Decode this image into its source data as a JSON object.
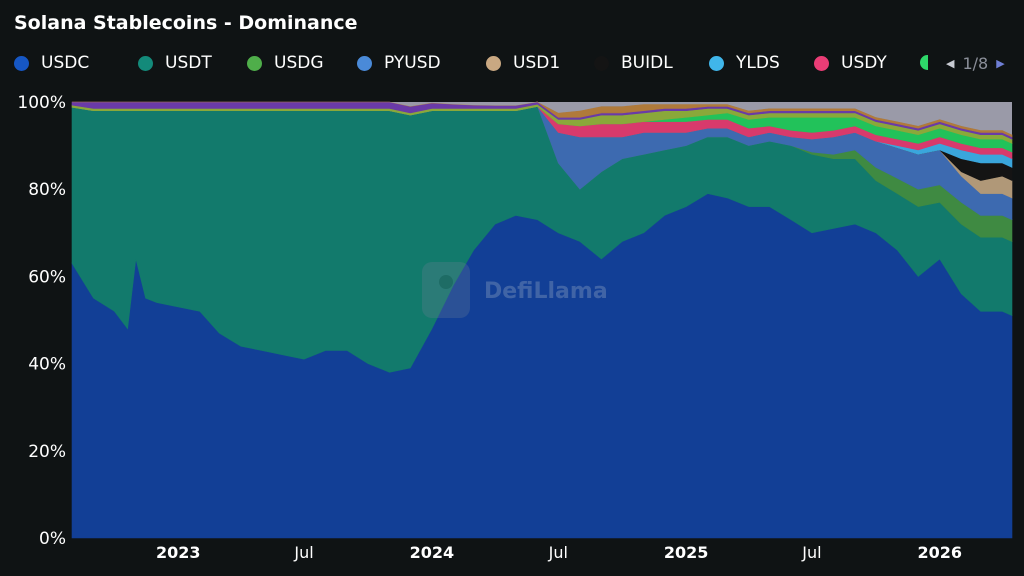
{
  "title": "Solana Stablecoins - Dominance",
  "legend": {
    "items": [
      {
        "label": "USDC",
        "color": "#1657c4"
      },
      {
        "label": "USDT",
        "color": "#138a7a"
      },
      {
        "label": "USDG",
        "color": "#4fae4a"
      },
      {
        "label": "PYUSD",
        "color": "#4a8ad8"
      },
      {
        "label": "USD1",
        "color": "#c9a882"
      },
      {
        "label": "BUIDL",
        "color": "#141414"
      },
      {
        "label": "YLDS",
        "color": "#40b6ea"
      },
      {
        "label": "USDY",
        "color": "#ea3d76"
      }
    ],
    "overflow_color": "#2ed86a",
    "page": "1/8"
  },
  "watermark": "DefiLlama",
  "chart_data": {
    "type": "area",
    "stacked": "percent",
    "title": "Solana Stablecoins - Dominance",
    "xlabel": "",
    "ylabel": "",
    "ylim": [
      0,
      100
    ],
    "y_ticks": [
      "0%",
      "20%",
      "40%",
      "60%",
      "80%",
      "100%"
    ],
    "x_ticks": [
      {
        "label": "2023",
        "date": "2023-01-01",
        "bold": true
      },
      {
        "label": "Jul",
        "date": "2023-07-01",
        "bold": false
      },
      {
        "label": "2024",
        "date": "2024-01-01",
        "bold": true
      },
      {
        "label": "Jul",
        "date": "2024-07-01",
        "bold": false
      },
      {
        "label": "2025",
        "date": "2025-01-01",
        "bold": true
      },
      {
        "label": "Jul",
        "date": "2025-07-01",
        "bold": false
      },
      {
        "label": "2026",
        "date": "2026-01-01",
        "bold": true
      }
    ],
    "x_range": [
      "2022-08-01",
      "2026-04-15"
    ],
    "legend_position": "top",
    "dates": [
      "2022-08-01",
      "2022-09-01",
      "2022-10-01",
      "2022-10-20",
      "2022-11-01",
      "2022-11-15",
      "2022-12-01",
      "2023-01-01",
      "2023-02-01",
      "2023-03-01",
      "2023-04-01",
      "2023-05-01",
      "2023-06-01",
      "2023-07-01",
      "2023-08-01",
      "2023-09-01",
      "2023-10-01",
      "2023-11-01",
      "2023-12-01",
      "2024-01-01",
      "2024-02-01",
      "2024-03-01",
      "2024-04-01",
      "2024-05-01",
      "2024-06-01",
      "2024-07-01",
      "2024-08-01",
      "2024-09-01",
      "2024-10-01",
      "2024-11-01",
      "2024-12-01",
      "2025-01-01",
      "2025-02-01",
      "2025-03-01",
      "2025-04-01",
      "2025-05-01",
      "2025-06-01",
      "2025-07-01",
      "2025-08-01",
      "2025-09-01",
      "2025-10-01",
      "2025-11-01",
      "2025-12-01",
      "2026-01-01",
      "2026-02-01",
      "2026-03-01",
      "2026-04-01",
      "2026-04-15"
    ],
    "series": [
      {
        "name": "USDC",
        "color": "#123f96",
        "values": [
          63,
          55,
          52,
          48,
          64,
          55,
          54,
          53,
          52,
          47,
          44,
          43,
          42,
          41,
          43,
          43,
          40,
          38,
          39,
          48,
          58,
          66,
          72,
          74,
          73,
          70,
          68,
          64,
          68,
          70,
          74,
          76,
          79,
          78,
          76,
          76,
          73,
          70,
          71,
          72,
          70,
          66,
          60,
          64,
          56,
          52,
          52,
          51
        ]
      },
      {
        "name": "USDT",
        "color": "#127a6c",
        "values": [
          35.8,
          43,
          46,
          50,
          34,
          43,
          44,
          45,
          46,
          51,
          54,
          55,
          56,
          57,
          55,
          55,
          58,
          60,
          58,
          50,
          40,
          32,
          26,
          24,
          26,
          16,
          12,
          20,
          19,
          18,
          15,
          14,
          13,
          14,
          14,
          15,
          17,
          18,
          16,
          15,
          12,
          13,
          16,
          13,
          16,
          17,
          17,
          17
        ]
      },
      {
        "name": "USDG",
        "color": "#3f8a42",
        "values": [
          0,
          0,
          0,
          0,
          0,
          0,
          0,
          0,
          0,
          0,
          0,
          0,
          0,
          0,
          0,
          0,
          0,
          0,
          0,
          0,
          0,
          0,
          0,
          0,
          0,
          0,
          0,
          0,
          0,
          0,
          0,
          0,
          0,
          0,
          0,
          0,
          0,
          0.5,
          1,
          2,
          3,
          3.5,
          4,
          4,
          5,
          5,
          5,
          5
        ]
      },
      {
        "name": "PYUSD",
        "color": "#3d6ab0",
        "values": [
          0,
          0,
          0,
          0,
          0,
          0,
          0,
          0,
          0,
          0,
          0,
          0,
          0,
          0,
          0,
          0,
          0,
          0,
          0,
          0,
          0,
          0,
          0,
          0,
          0,
          7,
          12,
          8,
          5,
          5,
          4,
          3,
          2,
          2,
          2,
          2,
          2,
          3,
          4,
          4,
          6,
          7,
          8,
          8,
          6,
          5,
          5,
          5
        ]
      },
      {
        "name": "USD1",
        "color": "#b09878",
        "values": [
          0,
          0,
          0,
          0,
          0,
          0,
          0,
          0,
          0,
          0,
          0,
          0,
          0,
          0,
          0,
          0,
          0,
          0,
          0,
          0,
          0,
          0,
          0,
          0,
          0,
          0,
          0,
          0,
          0,
          0,
          0,
          0,
          0,
          0,
          0,
          0,
          0,
          0,
          0,
          0,
          0,
          0,
          0,
          0,
          1,
          3,
          4,
          4
        ]
      },
      {
        "name": "BUIDL",
        "color": "#141414",
        "values": [
          0,
          0,
          0,
          0,
          0,
          0,
          0,
          0,
          0,
          0,
          0,
          0,
          0,
          0,
          0,
          0,
          0,
          0,
          0,
          0,
          0,
          0,
          0,
          0,
          0,
          0,
          0,
          0,
          0,
          0,
          0,
          0,
          0,
          0,
          0,
          0,
          0,
          0,
          0,
          0,
          0,
          0,
          0,
          0,
          3,
          4,
          3,
          3
        ]
      },
      {
        "name": "YLDS",
        "color": "#3aa6dc",
        "values": [
          0,
          0,
          0,
          0,
          0,
          0,
          0,
          0,
          0,
          0,
          0,
          0,
          0,
          0,
          0,
          0,
          0,
          0,
          0,
          0,
          0,
          0,
          0,
          0,
          0,
          0,
          0,
          0,
          0,
          0,
          0,
          0,
          0,
          0,
          0,
          0,
          0,
          0,
          0,
          0,
          0,
          0.5,
          1,
          1.5,
          2,
          2,
          2,
          2
        ]
      },
      {
        "name": "USDY",
        "color": "#d83a6c",
        "values": [
          0,
          0,
          0,
          0,
          0,
          0,
          0,
          0,
          0,
          0,
          0,
          0,
          0,
          0,
          0,
          0,
          0,
          0,
          0,
          0,
          0,
          0,
          0,
          0,
          0,
          2,
          2.5,
          3,
          3,
          2.5,
          2.5,
          2.5,
          2,
          2,
          2,
          1.5,
          1.5,
          1.5,
          1.5,
          1.5,
          1.5,
          1.5,
          1.5,
          1.5,
          1.5,
          1.5,
          1.5,
          1.5
        ]
      },
      {
        "name": "",
        "color": "#22c25a",
        "values": [
          0,
          0,
          0,
          0,
          0,
          0,
          0,
          0,
          0,
          0,
          0,
          0,
          0,
          0,
          0,
          0,
          0,
          0,
          0,
          0,
          0,
          0,
          0,
          0,
          0,
          0,
          0,
          0,
          0,
          0,
          0.5,
          1,
          1,
          1.5,
          2,
          2,
          3,
          3.5,
          3,
          2,
          2,
          2,
          2,
          2,
          2,
          2,
          2,
          2
        ]
      },
      {
        "name": "",
        "color": "#8aa83a",
        "values": [
          0.5,
          0.5,
          0.5,
          0.5,
          0.5,
          0.5,
          0.5,
          0.5,
          0.5,
          0.5,
          0.5,
          0.5,
          0.5,
          0.5,
          0.5,
          0.5,
          0.5,
          0.5,
          0.5,
          0.5,
          0.5,
          0.5,
          0.5,
          0.5,
          0.5,
          1,
          1.5,
          2,
          2,
          2,
          2,
          1.5,
          1.5,
          1,
          1,
          1,
          1,
          1,
          1,
          1,
          1,
          1,
          1,
          1,
          1,
          1,
          1,
          1
        ]
      },
      {
        "name": "",
        "color": "#6a3aa8",
        "values": [
          0.7,
          1.5,
          1.5,
          1.5,
          1.5,
          1.5,
          1.5,
          1.5,
          1.5,
          1.5,
          1.5,
          1.5,
          1.5,
          1.5,
          1.5,
          1.5,
          1.5,
          1.5,
          1.5,
          1.3,
          1,
          0.8,
          0.7,
          0.7,
          0.5,
          0.5,
          0.5,
          0.5,
          0.5,
          0.5,
          0.5,
          0.5,
          0.5,
          0.5,
          0.5,
          0.5,
          0.5,
          0.5,
          0.5,
          0.5,
          0.5,
          0.5,
          0.5,
          0.5,
          0.5,
          0.5,
          0.5,
          0.5
        ]
      },
      {
        "name": "",
        "color": "#b07a3a",
        "values": [
          0,
          0,
          0,
          0,
          0,
          0,
          0,
          0,
          0,
          0,
          0,
          0,
          0,
          0,
          0,
          0,
          0,
          0,
          0,
          0,
          0,
          0,
          0,
          0,
          0,
          1,
          1.5,
          1.5,
          1.5,
          1.5,
          1,
          1,
          0.5,
          0.5,
          0.5,
          0.5,
          0.5,
          0.5,
          0.5,
          0.5,
          0.5,
          0.5,
          0.5,
          0.5,
          0.5,
          0.5,
          0.5,
          0.5
        ]
      }
    ]
  }
}
